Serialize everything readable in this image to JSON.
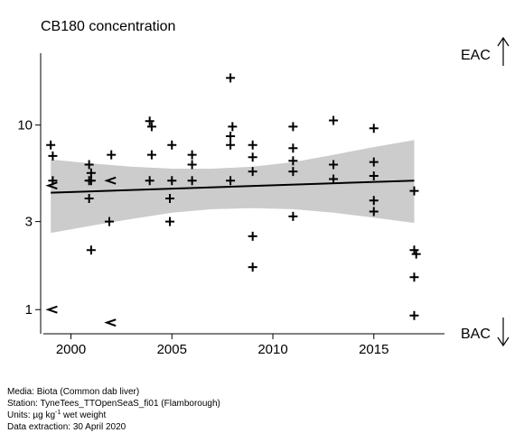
{
  "chart_data": {
    "type": "scatter",
    "title": "CB180 concentration",
    "x_ticks": [
      2000,
      2005,
      2010,
      2015
    ],
    "xlim": [
      1998.5,
      2018.5
    ],
    "y_scale": "log",
    "y_ticks": [
      {
        "value": 1,
        "label": "1"
      },
      {
        "value": 3,
        "label": "3"
      },
      {
        "value": 10,
        "label": "10"
      }
    ],
    "ylim": [
      0.74,
      24.5
    ],
    "ref_lines": [
      {
        "label": "EAC",
        "direction": "up",
        "value": 18.5
      },
      {
        "label": "BAC",
        "direction": "down",
        "value": 0.71
      }
    ],
    "points": [
      {
        "x": 1999.0,
        "y": 7.8,
        "marker": "+"
      },
      {
        "x": 1999.1,
        "y": 6.8,
        "marker": "+"
      },
      {
        "x": 1999.1,
        "y": 5.0,
        "marker": "+"
      },
      {
        "x": 1999.1,
        "y": 1.0,
        "marker": "<"
      },
      {
        "x": 2000.9,
        "y": 6.1,
        "marker": "+"
      },
      {
        "x": 2000.9,
        "y": 5.0,
        "marker": "+"
      },
      {
        "x": 2001.0,
        "y": 5.0,
        "marker": "+"
      },
      {
        "x": 2001.0,
        "y": 5.5,
        "marker": "+"
      },
      {
        "x": 2000.9,
        "y": 4.0,
        "marker": "+"
      },
      {
        "x": 2001.0,
        "y": 2.1,
        "marker": "+"
      },
      {
        "x": 2002.0,
        "y": 6.9,
        "marker": "+"
      },
      {
        "x": 2002.0,
        "y": 5.0,
        "marker": "<"
      },
      {
        "x": 1999.1,
        "y": 4.7,
        "marker": "<"
      },
      {
        "x": 2001.9,
        "y": 3.0,
        "marker": "+"
      },
      {
        "x": 2002.0,
        "y": 0.85,
        "marker": "<"
      },
      {
        "x": 2003.9,
        "y": 10.5,
        "marker": "+"
      },
      {
        "x": 2004.0,
        "y": 9.8,
        "marker": "+"
      },
      {
        "x": 2004.0,
        "y": 6.9,
        "marker": "+"
      },
      {
        "x": 2003.9,
        "y": 5.0,
        "marker": "+"
      },
      {
        "x": 2005.0,
        "y": 7.8,
        "marker": "+"
      },
      {
        "x": 2005.0,
        "y": 5.0,
        "marker": "+"
      },
      {
        "x": 2004.9,
        "y": 4.0,
        "marker": "+"
      },
      {
        "x": 2004.9,
        "y": 3.0,
        "marker": "+"
      },
      {
        "x": 2006.0,
        "y": 6.9,
        "marker": "+"
      },
      {
        "x": 2006.0,
        "y": 6.1,
        "marker": "+"
      },
      {
        "x": 2006.0,
        "y": 5.0,
        "marker": "+"
      },
      {
        "x": 2007.9,
        "y": 18.0,
        "marker": "+"
      },
      {
        "x": 2008.0,
        "y": 9.8,
        "marker": "+"
      },
      {
        "x": 2007.9,
        "y": 8.7,
        "marker": "+"
      },
      {
        "x": 2007.9,
        "y": 7.8,
        "marker": "+"
      },
      {
        "x": 2007.9,
        "y": 5.0,
        "marker": "+"
      },
      {
        "x": 2009.0,
        "y": 7.8,
        "marker": "+"
      },
      {
        "x": 2009.0,
        "y": 6.7,
        "marker": "+"
      },
      {
        "x": 2009.0,
        "y": 5.6,
        "marker": "+"
      },
      {
        "x": 2009.0,
        "y": 2.5,
        "marker": "+"
      },
      {
        "x": 2009.0,
        "y": 1.7,
        "marker": "+"
      },
      {
        "x": 2011.0,
        "y": 9.8,
        "marker": "+"
      },
      {
        "x": 2011.0,
        "y": 7.5,
        "marker": "+"
      },
      {
        "x": 2011.0,
        "y": 6.4,
        "marker": "+"
      },
      {
        "x": 2011.0,
        "y": 5.6,
        "marker": "+"
      },
      {
        "x": 2011.0,
        "y": 3.2,
        "marker": "+"
      },
      {
        "x": 2013.0,
        "y": 10.6,
        "marker": "+"
      },
      {
        "x": 2013.0,
        "y": 6.1,
        "marker": "+"
      },
      {
        "x": 2013.0,
        "y": 5.1,
        "marker": "+"
      },
      {
        "x": 2015.0,
        "y": 9.6,
        "marker": "+"
      },
      {
        "x": 2015.0,
        "y": 6.3,
        "marker": "+"
      },
      {
        "x": 2015.0,
        "y": 5.3,
        "marker": "+"
      },
      {
        "x": 2015.0,
        "y": 3.9,
        "marker": "+"
      },
      {
        "x": 2015.0,
        "y": 3.4,
        "marker": "+"
      },
      {
        "x": 2017.0,
        "y": 4.4,
        "marker": "+"
      },
      {
        "x": 2017.0,
        "y": 2.1,
        "marker": "+"
      },
      {
        "x": 2017.1,
        "y": 2.0,
        "marker": "+"
      },
      {
        "x": 2017.0,
        "y": 1.5,
        "marker": "+"
      },
      {
        "x": 2017.0,
        "y": 0.93,
        "marker": "+"
      }
    ],
    "trend": {
      "x": [
        1999,
        2017
      ],
      "y": [
        4.3,
        5.0
      ]
    },
    "band": {
      "x": [
        1999,
        2001,
        2003,
        2005,
        2007,
        2009,
        2011,
        2013,
        2015,
        2017
      ],
      "upper": [
        6.5,
        6.2,
        5.95,
        5.8,
        5.8,
        5.95,
        6.3,
        6.9,
        7.6,
        8.3
      ],
      "lower": [
        2.6,
        2.85,
        3.1,
        3.35,
        3.5,
        3.55,
        3.5,
        3.35,
        3.15,
        2.95
      ]
    }
  },
  "footer": {
    "media": "Media: Biota (Common dab liver)",
    "station": "Station: TyneTees_TTOpenSeaS_fi01 (Flamborough)",
    "units_prefix": "Units: µg kg",
    "units_sup": "-1",
    "units_suffix": " wet weight",
    "extraction": "Data extraction: 30 April 2020"
  }
}
